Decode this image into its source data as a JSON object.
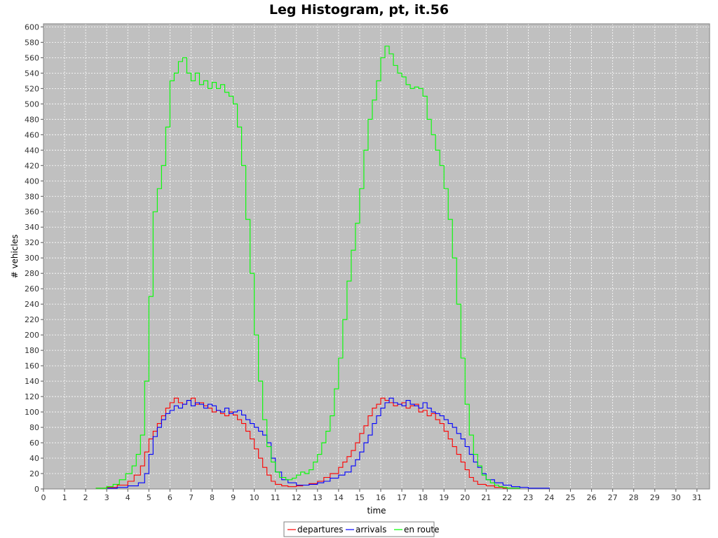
{
  "chart_data": {
    "type": "line",
    "title": "Leg Histogram, pt, it.56",
    "xlabel": "time",
    "ylabel": "# vehicles",
    "xlim": [
      0,
      31.6
    ],
    "ylim": [
      0,
      604
    ],
    "x_ticks": [
      0,
      1,
      2,
      3,
      4,
      5,
      6,
      7,
      8,
      9,
      10,
      11,
      12,
      13,
      14,
      15,
      16,
      17,
      18,
      19,
      20,
      21,
      22,
      23,
      24,
      25,
      26,
      27,
      28,
      29,
      30,
      31
    ],
    "y_ticks": [
      0,
      20,
      40,
      60,
      80,
      100,
      120,
      140,
      160,
      180,
      200,
      220,
      240,
      260,
      280,
      300,
      320,
      340,
      360,
      380,
      400,
      420,
      440,
      460,
      480,
      500,
      520,
      540,
      560,
      580,
      600
    ],
    "grid": true,
    "legend_position": "bottom-center",
    "colors": {
      "plot_bg": "#c0c0c0",
      "grid": "#ffffff",
      "frame": "#808080"
    },
    "series": [
      {
        "name": "departures",
        "color": "#ff0000",
        "x": [
          0,
          2,
          2.5,
          3,
          3.5,
          4,
          4.3,
          4.6,
          4.8,
          5,
          5.2,
          5.4,
          5.6,
          5.8,
          6,
          6.2,
          6.4,
          6.6,
          6.8,
          7,
          7.2,
          7.4,
          7.6,
          7.8,
          8,
          8.2,
          8.4,
          8.6,
          8.8,
          9,
          9.2,
          9.4,
          9.6,
          9.8,
          10,
          10.2,
          10.4,
          10.6,
          10.8,
          11,
          11.3,
          11.6,
          12,
          12.3,
          12.6,
          13,
          13.3,
          13.6,
          14,
          14.2,
          14.4,
          14.6,
          14.8,
          15,
          15.2,
          15.4,
          15.6,
          15.8,
          16,
          16.2,
          16.4,
          16.6,
          16.8,
          17,
          17.2,
          17.4,
          17.6,
          17.8,
          18,
          18.2,
          18.4,
          18.6,
          18.8,
          19,
          19.2,
          19.4,
          19.6,
          19.8,
          20,
          20.2,
          20.4,
          20.6,
          21,
          21.4,
          21.8,
          22.2,
          22.6,
          23,
          24,
          30
        ],
        "y": [
          0,
          0,
          1,
          2,
          5,
          10,
          18,
          30,
          48,
          65,
          75,
          85,
          95,
          105,
          112,
          118,
          112,
          110,
          115,
          118,
          110,
          112,
          108,
          105,
          100,
          102,
          98,
          95,
          100,
          96,
          90,
          85,
          75,
          65,
          52,
          40,
          28,
          18,
          10,
          6,
          4,
          3,
          4,
          5,
          7,
          10,
          15,
          20,
          28,
          35,
          42,
          50,
          60,
          72,
          82,
          95,
          105,
          110,
          118,
          115,
          112,
          108,
          110,
          112,
          105,
          108,
          110,
          100,
          102,
          95,
          98,
          90,
          85,
          75,
          65,
          55,
          45,
          35,
          25,
          15,
          10,
          6,
          4,
          2,
          1,
          1,
          0,
          0,
          0,
          0
        ]
      },
      {
        "name": "arrivals",
        "color": "#0000ff",
        "x": [
          0,
          2,
          3,
          3.5,
          4,
          4.5,
          4.8,
          5,
          5.2,
          5.4,
          5.6,
          5.8,
          6,
          6.2,
          6.4,
          6.6,
          6.8,
          7,
          7.2,
          7.4,
          7.6,
          7.8,
          8,
          8.2,
          8.4,
          8.6,
          8.8,
          9,
          9.2,
          9.4,
          9.6,
          9.8,
          10,
          10.2,
          10.4,
          10.6,
          10.8,
          11,
          11.3,
          11.6,
          12,
          12.3,
          12.6,
          13,
          13.3,
          13.6,
          14,
          14.3,
          14.6,
          14.8,
          15,
          15.2,
          15.4,
          15.6,
          15.8,
          16,
          16.2,
          16.4,
          16.6,
          16.8,
          17,
          17.2,
          17.4,
          17.6,
          17.8,
          18,
          18.2,
          18.4,
          18.6,
          18.8,
          19,
          19.2,
          19.4,
          19.6,
          19.8,
          20,
          20.2,
          20.4,
          20.6,
          20.8,
          21,
          21.4,
          21.8,
          22.2,
          22.6,
          23,
          24,
          30
        ],
        "y": [
          0,
          0,
          1,
          2,
          4,
          8,
          20,
          45,
          68,
          80,
          90,
          98,
          102,
          108,
          105,
          110,
          115,
          108,
          112,
          110,
          105,
          110,
          108,
          102,
          100,
          105,
          98,
          100,
          102,
          96,
          90,
          85,
          80,
          75,
          70,
          60,
          40,
          22,
          12,
          8,
          5,
          5,
          6,
          8,
          10,
          14,
          18,
          22,
          30,
          38,
          48,
          60,
          70,
          85,
          95,
          105,
          112,
          118,
          112,
          110,
          108,
          115,
          110,
          108,
          105,
          112,
          105,
          100,
          98,
          95,
          90,
          85,
          80,
          72,
          65,
          55,
          45,
          35,
          28,
          20,
          12,
          8,
          5,
          3,
          2,
          1,
          0,
          0
        ]
      },
      {
        "name": "en route",
        "color": "#00ff00",
        "x": [
          0,
          2,
          2.5,
          3,
          3.3,
          3.6,
          3.9,
          4.2,
          4.4,
          4.6,
          4.8,
          5,
          5.2,
          5.4,
          5.6,
          5.8,
          6,
          6.2,
          6.4,
          6.6,
          6.8,
          7,
          7.2,
          7.4,
          7.6,
          7.8,
          8,
          8.2,
          8.4,
          8.6,
          8.8,
          9,
          9.2,
          9.4,
          9.6,
          9.8,
          10,
          10.2,
          10.4,
          10.6,
          10.8,
          11,
          11.2,
          11.5,
          11.8,
          12,
          12.2,
          12.4,
          12.6,
          12.8,
          13,
          13.2,
          13.4,
          13.6,
          13.8,
          14,
          14.2,
          14.4,
          14.6,
          14.8,
          15,
          15.2,
          15.4,
          15.6,
          15.8,
          16,
          16.2,
          16.4,
          16.6,
          16.8,
          17,
          17.2,
          17.4,
          17.6,
          17.8,
          18,
          18.2,
          18.4,
          18.6,
          18.8,
          19,
          19.2,
          19.4,
          19.6,
          19.8,
          20,
          20.2,
          20.4,
          20.6,
          20.8,
          21,
          21.2,
          21.4,
          21.6,
          21.8,
          22,
          22.3,
          22.6,
          23,
          23.5,
          24,
          30
        ],
        "y": [
          0,
          0,
          1,
          3,
          6,
          12,
          20,
          30,
          45,
          70,
          140,
          250,
          360,
          390,
          420,
          470,
          530,
          540,
          555,
          560,
          540,
          530,
          540,
          525,
          530,
          520,
          528,
          520,
          525,
          515,
          510,
          500,
          470,
          420,
          350,
          280,
          200,
          140,
          90,
          55,
          35,
          22,
          15,
          12,
          14,
          18,
          22,
          20,
          25,
          35,
          45,
          60,
          75,
          95,
          130,
          170,
          220,
          270,
          310,
          345,
          390,
          440,
          480,
          505,
          530,
          560,
          575,
          565,
          550,
          540,
          535,
          525,
          520,
          522,
          520,
          510,
          480,
          460,
          440,
          420,
          390,
          350,
          300,
          240,
          170,
          110,
          70,
          45,
          30,
          18,
          12,
          8,
          5,
          3,
          2,
          1,
          1,
          0,
          0,
          0,
          0,
          0
        ]
      }
    ]
  }
}
